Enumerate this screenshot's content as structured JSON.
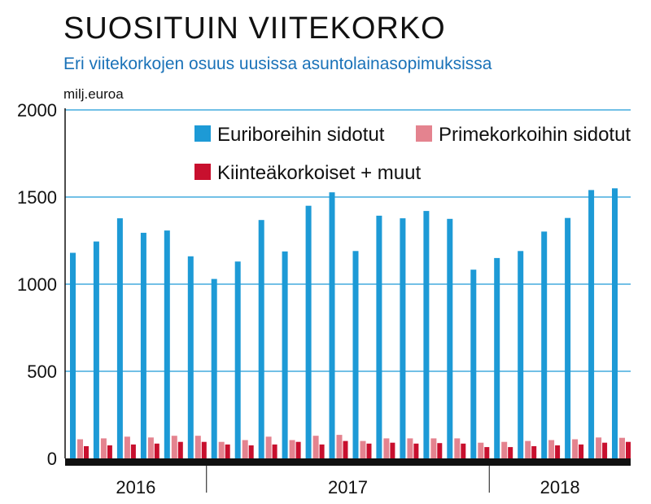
{
  "title": "SUOSITUIN VIITEKORKO",
  "subtitle": "Eri viitekorkojen osuus uusissa asuntolainasopimuksissa",
  "unit_label": "milj.euroa",
  "chart_data": {
    "type": "bar",
    "ylim": [
      0,
      2000
    ],
    "yticks": [
      "0",
      "500",
      "1000",
      "1500",
      "2000"
    ],
    "ytick_values": [
      0,
      500,
      1000,
      1500,
      2000
    ],
    "grid": true,
    "legend_position": "top-right",
    "years": [
      {
        "label": "2016",
        "months": 6
      },
      {
        "label": "2017",
        "months": 12
      },
      {
        "label": "2018",
        "months": 6
      }
    ],
    "series": [
      {
        "name": "Euriboreihin sidotut",
        "color": "#1d9ad6",
        "values": [
          1180,
          1245,
          1378,
          1295,
          1308,
          1160,
          1030,
          1130,
          1368,
          1188,
          1450,
          1527,
          1190,
          1393,
          1378,
          1420,
          1375,
          1083,
          1150,
          1190,
          1302,
          1380,
          1540,
          1550
        ]
      },
      {
        "name": "Primekorkoihin sidotut",
        "color": "#e4838f",
        "values": [
          110,
          115,
          125,
          120,
          130,
          130,
          95,
          105,
          125,
          105,
          130,
          135,
          100,
          115,
          115,
          115,
          115,
          90,
          95,
          100,
          105,
          110,
          120,
          118
        ]
      },
      {
        "name": "Kiinteäkorkoiset + muut",
        "color": "#c8102e",
        "values": [
          70,
          75,
          80,
          85,
          95,
          95,
          80,
          75,
          80,
          95,
          80,
          100,
          85,
          90,
          85,
          88,
          85,
          65,
          65,
          70,
          75,
          80,
          90,
          95
        ]
      }
    ]
  }
}
